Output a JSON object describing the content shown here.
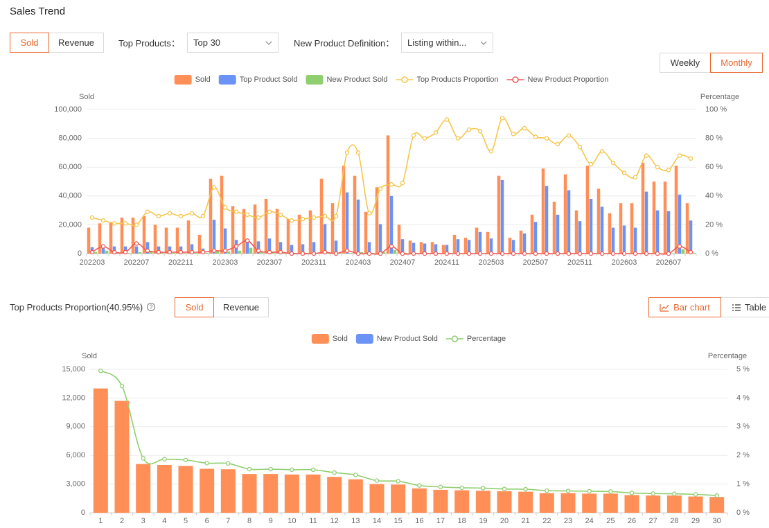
{
  "title": "Sales Trend",
  "metric_toggle": [
    "Sold",
    "Revenue"
  ],
  "top_products": {
    "label": "Top Products：",
    "value": "Top 30"
  },
  "new_product": {
    "label": "New Product Definition：",
    "value": "Listing within..."
  },
  "period_toggle": [
    "Weekly",
    "Monthly"
  ],
  "section2": {
    "title": "Top Products Proportion(40.95%)",
    "metric_toggle": [
      "Sold",
      "Revenue"
    ],
    "view_toggle": [
      "Bar chart",
      "Table"
    ]
  },
  "chart_data": [
    {
      "type": "bar",
      "y_label": "Sold",
      "y2_label": "Percentage",
      "categories": [
        "202203",
        null,
        null,
        null,
        "202207",
        null,
        null,
        null,
        "202211",
        null,
        null,
        null,
        "202303",
        null,
        null,
        null,
        "202307",
        null,
        null,
        null,
        "202311",
        null,
        null,
        null,
        "202403",
        null,
        null,
        null,
        "202407",
        null,
        null,
        null,
        "202411",
        null,
        null,
        null,
        "202503",
        null,
        null,
        null,
        "202507",
        null,
        null,
        null,
        "202511",
        null,
        null,
        null,
        "202603",
        null,
        null,
        null,
        "202607",
        null,
        null
      ],
      "series": [
        {
          "name": "Sold",
          "color": "#ff8f57",
          "values": [
            18000,
            21000,
            22000,
            25000,
            25000,
            26000,
            20000,
            18000,
            18000,
            23000,
            13000,
            52000,
            54000,
            33000,
            31000,
            34000,
            38000,
            31000,
            24000,
            27000,
            30000,
            52000,
            35000,
            61000,
            54000,
            29000,
            46000,
            82000,
            20000,
            9000,
            8000,
            8000,
            6000,
            13000,
            11000,
            18000,
            15000,
            54000,
            11000,
            16000,
            27000,
            59000,
            36000,
            55000,
            30000,
            61000,
            45000,
            28000,
            35000,
            35000,
            63000,
            50000,
            50000,
            61000,
            35000
          ]
        },
        {
          "name": "Top Product Sold",
          "color": "#6b93f5",
          "values": [
            4500,
            6000,
            5000,
            5000,
            5000,
            8000,
            5000,
            5000,
            5000,
            6500,
            3500,
            23500,
            17500,
            9500,
            9000,
            8500,
            10500,
            8000,
            6000,
            6500,
            8000,
            20500,
            9000,
            42500,
            37500,
            8000,
            20500,
            40000,
            10000,
            7500,
            7000,
            6500,
            6000,
            10000,
            9500,
            15000,
            10500,
            51000,
            9500,
            14000,
            22000,
            47000,
            27000,
            44000,
            22500,
            38000,
            32500,
            18000,
            19500,
            18000,
            43000,
            30000,
            29500,
            41000,
            23000
          ]
        },
        {
          "name": "New Product Sold",
          "color": "#8fcf70",
          "values": [
            1000,
            2000,
            1000,
            500,
            1000,
            2000,
            500,
            500,
            500,
            500,
            500,
            2000,
            1500,
            2000,
            4000,
            1000,
            1500,
            500,
            500,
            500,
            500,
            1000,
            500,
            500,
            1000,
            500,
            1000,
            2500,
            500,
            500,
            300,
            300,
            300,
            300,
            300,
            300,
            300,
            300,
            300,
            300,
            300,
            300,
            300,
            300,
            300,
            300,
            300,
            300,
            300,
            300,
            300,
            300,
            300,
            3000,
            500
          ]
        },
        {
          "name": "Top Products Proportion",
          "type": "line",
          "axis": "y2",
          "color": "#f5c64b",
          "values": [
            25,
            23,
            21,
            21,
            20,
            29,
            26,
            28,
            26,
            28,
            26,
            46,
            32,
            29,
            27,
            25,
            29,
            27,
            23,
            24,
            25,
            26,
            26,
            70,
            70,
            28,
            45,
            48,
            49,
            82,
            80,
            84,
            93,
            80,
            86,
            85,
            71,
            94,
            83,
            87,
            81,
            80,
            76,
            82,
            74,
            62,
            71,
            63,
            56,
            53,
            68,
            60,
            58,
            68,
            66
          ]
        },
        {
          "name": "New Product Proportion",
          "type": "line",
          "axis": "y2",
          "color": "#f05a5a",
          "values": [
            1,
            5,
            1,
            1,
            7,
            2,
            1,
            1,
            1,
            1,
            1,
            2,
            2,
            5,
            9,
            2,
            1,
            1,
            0,
            0,
            0,
            1,
            0,
            2,
            0,
            0,
            0,
            5,
            0,
            0,
            0,
            0,
            0,
            0,
            0,
            0,
            0,
            0,
            0,
            0,
            0,
            0,
            0,
            0,
            0,
            0,
            0,
            0,
            0,
            0,
            0,
            0,
            0,
            5,
            1
          ]
        }
      ],
      "ylim": [
        0,
        100000
      ],
      "yticks": [
        0,
        {
          "value": 20000,
          "label": "20,000"
        },
        {
          "value": 40000,
          "label": "40,000"
        },
        {
          "value": 60000,
          "label": "60,000"
        },
        {
          "value": 80000,
          "label": "80,000"
        },
        {
          "value": 100000,
          "label": "100,000"
        }
      ],
      "y2lim": [
        0,
        100
      ],
      "y2ticks": [
        {
          "value": 0,
          "label": "0 %"
        },
        {
          "value": 20,
          "label": "20 %"
        },
        {
          "value": 40,
          "label": "40 %"
        },
        {
          "value": 60,
          "label": "60 %"
        },
        {
          "value": 80,
          "label": "80 %"
        },
        {
          "value": 100,
          "label": "100 %"
        }
      ],
      "grid": true,
      "legend": "top"
    },
    {
      "type": "bar",
      "y_label": "Sold",
      "y2_label": "Percentage",
      "categories": [
        "1",
        "2",
        "3",
        "4",
        "5",
        "6",
        "7",
        "8",
        "9",
        "10",
        "11",
        "12",
        "13",
        "14",
        "15",
        "16",
        "17",
        "18",
        "19",
        "20",
        "21",
        "22",
        "23",
        "24",
        "25",
        "26",
        "27",
        "28",
        "29",
        "30"
      ],
      "series": [
        {
          "name": "Sold",
          "color": "#ff8f57",
          "values": [
            13000,
            11700,
            5100,
            5000,
            4900,
            4600,
            4550,
            4050,
            4050,
            4000,
            4000,
            3750,
            3500,
            3000,
            2950,
            2550,
            2400,
            2350,
            2300,
            2250,
            2200,
            2050,
            2050,
            2000,
            2000,
            1850,
            1800,
            1800,
            1700,
            1650
          ]
        },
        {
          "name": "New Product Sold",
          "color": "#6b93f5",
          "values": [
            0,
            0,
            0,
            0,
            0,
            0,
            0,
            0,
            0,
            0,
            0,
            0,
            0,
            0,
            0,
            0,
            0,
            0,
            0,
            0,
            0,
            0,
            0,
            0,
            0,
            0,
            0,
            0,
            0,
            0
          ]
        },
        {
          "name": "Percentage",
          "type": "line",
          "axis": "y2",
          "color": "#8fcf70",
          "values": [
            4.95,
            4.42,
            1.9,
            1.87,
            1.84,
            1.73,
            1.72,
            1.52,
            1.52,
            1.5,
            1.5,
            1.4,
            1.32,
            1.12,
            1.1,
            0.95,
            0.9,
            0.87,
            0.86,
            0.83,
            0.82,
            0.77,
            0.76,
            0.75,
            0.74,
            0.69,
            0.67,
            0.66,
            0.64,
            0.6
          ]
        }
      ],
      "ylim": [
        0,
        15000
      ],
      "yticks": [
        0,
        {
          "value": 3000,
          "label": "3,000"
        },
        {
          "value": 6000,
          "label": "6,000"
        },
        {
          "value": 9000,
          "label": "9,000"
        },
        {
          "value": 12000,
          "label": "12,000"
        },
        {
          "value": 15000,
          "label": "15,000"
        }
      ],
      "y2lim": [
        0,
        5
      ],
      "y2ticks": [
        {
          "value": 0,
          "label": "0 %"
        },
        {
          "value": 1,
          "label": "1 %"
        },
        {
          "value": 2,
          "label": "2 %"
        },
        {
          "value": 3,
          "label": "3 %"
        },
        {
          "value": 4,
          "label": "4 %"
        },
        {
          "value": 5,
          "label": "5 %"
        }
      ],
      "grid": true,
      "legend": "top"
    }
  ]
}
